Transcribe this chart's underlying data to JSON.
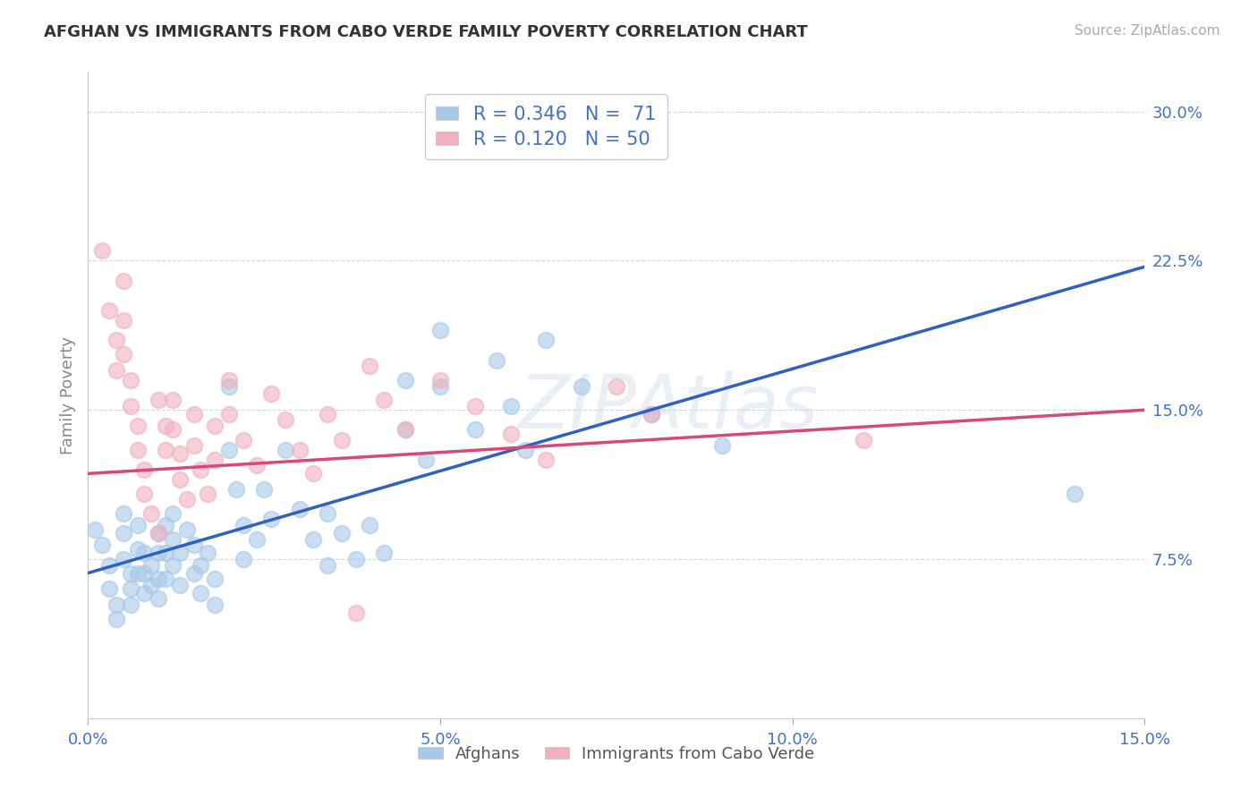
{
  "title": "AFGHAN VS IMMIGRANTS FROM CABO VERDE FAMILY POVERTY CORRELATION CHART",
  "source": "Source: ZipAtlas.com",
  "ylabel": "Family Poverty",
  "watermark": "ZIPAtlas",
  "xlim": [
    0.0,
    0.15
  ],
  "ylim": [
    -0.005,
    0.32
  ],
  "xticks": [
    0.0,
    0.05,
    0.1,
    0.15
  ],
  "xticklabels": [
    "0.0%",
    "5.0%",
    "10.0%",
    "15.0%"
  ],
  "yticks_right": [
    0.075,
    0.15,
    0.225,
    0.3
  ],
  "yticklabels_right": [
    "7.5%",
    "15.0%",
    "22.5%",
    "30.0%"
  ],
  "blue_color": "#a8c8e8",
  "pink_color": "#f0b0c0",
  "blue_line_color": "#3060c0",
  "pink_line_color": "#d84878",
  "blue_scatter": [
    [
      0.001,
      0.09
    ],
    [
      0.002,
      0.082
    ],
    [
      0.003,
      0.072
    ],
    [
      0.003,
      0.06
    ],
    [
      0.004,
      0.052
    ],
    [
      0.004,
      0.045
    ],
    [
      0.005,
      0.098
    ],
    [
      0.005,
      0.088
    ],
    [
      0.005,
      0.075
    ],
    [
      0.006,
      0.068
    ],
    [
      0.006,
      0.06
    ],
    [
      0.006,
      0.052
    ],
    [
      0.007,
      0.092
    ],
    [
      0.007,
      0.08
    ],
    [
      0.007,
      0.068
    ],
    [
      0.008,
      0.078
    ],
    [
      0.008,
      0.068
    ],
    [
      0.008,
      0.058
    ],
    [
      0.009,
      0.072
    ],
    [
      0.009,
      0.062
    ],
    [
      0.01,
      0.088
    ],
    [
      0.01,
      0.078
    ],
    [
      0.01,
      0.065
    ],
    [
      0.01,
      0.055
    ],
    [
      0.011,
      0.092
    ],
    [
      0.011,
      0.078
    ],
    [
      0.011,
      0.065
    ],
    [
      0.012,
      0.098
    ],
    [
      0.012,
      0.085
    ],
    [
      0.012,
      0.072
    ],
    [
      0.013,
      0.078
    ],
    [
      0.013,
      0.062
    ],
    [
      0.014,
      0.09
    ],
    [
      0.015,
      0.082
    ],
    [
      0.015,
      0.068
    ],
    [
      0.016,
      0.072
    ],
    [
      0.016,
      0.058
    ],
    [
      0.017,
      0.078
    ],
    [
      0.018,
      0.065
    ],
    [
      0.018,
      0.052
    ],
    [
      0.02,
      0.162
    ],
    [
      0.02,
      0.13
    ],
    [
      0.021,
      0.11
    ],
    [
      0.022,
      0.092
    ],
    [
      0.022,
      0.075
    ],
    [
      0.024,
      0.085
    ],
    [
      0.025,
      0.11
    ],
    [
      0.026,
      0.095
    ],
    [
      0.028,
      0.13
    ],
    [
      0.03,
      0.1
    ],
    [
      0.032,
      0.085
    ],
    [
      0.034,
      0.098
    ],
    [
      0.034,
      0.072
    ],
    [
      0.036,
      0.088
    ],
    [
      0.038,
      0.075
    ],
    [
      0.04,
      0.092
    ],
    [
      0.042,
      0.078
    ],
    [
      0.045,
      0.165
    ],
    [
      0.045,
      0.14
    ],
    [
      0.048,
      0.125
    ],
    [
      0.05,
      0.19
    ],
    [
      0.05,
      0.162
    ],
    [
      0.055,
      0.14
    ],
    [
      0.058,
      0.175
    ],
    [
      0.06,
      0.152
    ],
    [
      0.062,
      0.13
    ],
    [
      0.065,
      0.185
    ],
    [
      0.07,
      0.162
    ],
    [
      0.08,
      0.148
    ],
    [
      0.09,
      0.132
    ],
    [
      0.14,
      0.108
    ]
  ],
  "pink_scatter": [
    [
      0.002,
      0.23
    ],
    [
      0.003,
      0.2
    ],
    [
      0.004,
      0.185
    ],
    [
      0.004,
      0.17
    ],
    [
      0.005,
      0.215
    ],
    [
      0.005,
      0.195
    ],
    [
      0.005,
      0.178
    ],
    [
      0.006,
      0.165
    ],
    [
      0.006,
      0.152
    ],
    [
      0.007,
      0.142
    ],
    [
      0.007,
      0.13
    ],
    [
      0.008,
      0.12
    ],
    [
      0.008,
      0.108
    ],
    [
      0.009,
      0.098
    ],
    [
      0.01,
      0.088
    ],
    [
      0.01,
      0.155
    ],
    [
      0.011,
      0.142
    ],
    [
      0.011,
      0.13
    ],
    [
      0.012,
      0.155
    ],
    [
      0.012,
      0.14
    ],
    [
      0.013,
      0.128
    ],
    [
      0.013,
      0.115
    ],
    [
      0.014,
      0.105
    ],
    [
      0.015,
      0.148
    ],
    [
      0.015,
      0.132
    ],
    [
      0.016,
      0.12
    ],
    [
      0.017,
      0.108
    ],
    [
      0.018,
      0.142
    ],
    [
      0.018,
      0.125
    ],
    [
      0.02,
      0.165
    ],
    [
      0.02,
      0.148
    ],
    [
      0.022,
      0.135
    ],
    [
      0.024,
      0.122
    ],
    [
      0.026,
      0.158
    ],
    [
      0.028,
      0.145
    ],
    [
      0.03,
      0.13
    ],
    [
      0.032,
      0.118
    ],
    [
      0.034,
      0.148
    ],
    [
      0.036,
      0.135
    ],
    [
      0.038,
      0.048
    ],
    [
      0.04,
      0.172
    ],
    [
      0.042,
      0.155
    ],
    [
      0.045,
      0.14
    ],
    [
      0.05,
      0.165
    ],
    [
      0.055,
      0.152
    ],
    [
      0.06,
      0.138
    ],
    [
      0.065,
      0.125
    ],
    [
      0.075,
      0.162
    ],
    [
      0.08,
      0.148
    ],
    [
      0.11,
      0.135
    ]
  ],
  "blue_line_x": [
    0.0,
    0.15
  ],
  "blue_line_y": [
    0.068,
    0.222
  ],
  "pink_line_x": [
    0.0,
    0.15
  ],
  "pink_line_y": [
    0.118,
    0.15
  ],
  "legend_blue_label_r": "R = ",
  "legend_blue_R": "0.346",
  "legend_blue_n": "  N = ",
  "legend_blue_N": " 71",
  "legend_pink_label_r": "R = ",
  "legend_pink_R": "0.120",
  "legend_pink_n": "  N = ",
  "legend_pink_N": "50",
  "bottom_legend_blue": "Afghans",
  "bottom_legend_pink": "Immigrants from Cabo Verde",
  "background_color": "#ffffff",
  "grid_color": "#d0d8e0",
  "title_color": "#333333",
  "tick_color": "#4472c4"
}
